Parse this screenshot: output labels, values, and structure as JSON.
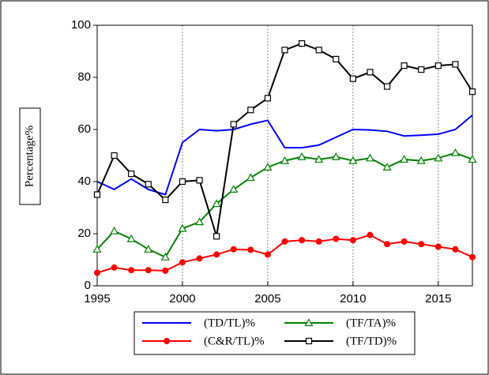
{
  "chart_data": {
    "type": "line",
    "y_label": "Percentage%",
    "x": [
      1995,
      1996,
      1997,
      1998,
      1999,
      2000,
      2001,
      2002,
      2003,
      2004,
      2005,
      2006,
      2007,
      2008,
      2009,
      2010,
      2011,
      2012,
      2013,
      2014,
      2015,
      2016,
      2017
    ],
    "xlim": [
      1995,
      2017
    ],
    "xticks": [
      1995,
      2000,
      2005,
      2010,
      2015
    ],
    "ylim": [
      0,
      100
    ],
    "yticks": [
      0,
      20,
      40,
      60,
      80,
      100
    ],
    "grid": true,
    "series": [
      {
        "name": "(TD/TL)%",
        "color": "#0000ff",
        "marker": "none",
        "values": [
          40,
          37,
          41,
          37,
          35,
          55,
          60,
          59.5,
          60,
          62,
          63.5,
          53,
          53,
          54,
          57,
          60,
          59.8,
          59.3,
          57.5,
          57.8,
          58.2,
          60,
          65.5
        ]
      },
      {
        "name": "(TF/TA)%",
        "color": "#008000",
        "marker": "triangle",
        "values": [
          14,
          21,
          18,
          14,
          11,
          22,
          24.5,
          31.5,
          37,
          41.5,
          45.5,
          48,
          49.5,
          48.5,
          49.5,
          48,
          49,
          45.5,
          48.5,
          48,
          49,
          51,
          48.5
        ]
      },
      {
        "name": "(C&R/TL)%",
        "color": "#ff0000",
        "marker": "circle",
        "values": [
          5,
          7,
          6,
          6,
          5.8,
          9,
          10.5,
          12,
          14,
          13.8,
          12,
          17,
          17.5,
          17,
          18,
          17.5,
          19.5,
          16,
          17,
          16,
          15,
          14,
          11
        ]
      },
      {
        "name": "(TF/TD)%",
        "color": "#000000",
        "marker": "square",
        "values": [
          35,
          50,
          43,
          39,
          33,
          40,
          40.5,
          19,
          62,
          67.5,
          72,
          90.5,
          93,
          90.5,
          87,
          79.5,
          82,
          76.5,
          84.5,
          83,
          84.5,
          85,
          74.5
        ]
      }
    ]
  }
}
